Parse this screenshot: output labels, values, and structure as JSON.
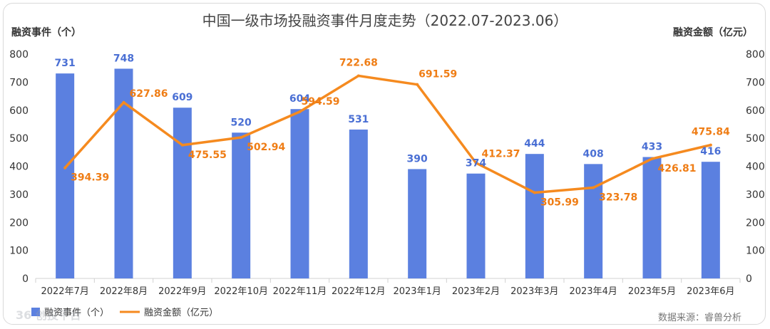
{
  "chart_data": {
    "type": "bar+line",
    "title": "中国一级市场投融资事件月度走势（2022.07-2023.06）",
    "ylabel_left": "融资事件（个）",
    "ylabel_right": "融资金额（亿元）",
    "ylim_left": [
      0,
      800
    ],
    "ylim_right": [
      0,
      800
    ],
    "yticks_left": [
      "0",
      "100",
      "200",
      "300",
      "400",
      "500",
      "600",
      "700",
      "800"
    ],
    "yticks_right": [
      "0",
      "100",
      "200",
      "300",
      "400",
      "500",
      "600",
      "700",
      "800"
    ],
    "categories": [
      "2022年7月",
      "2022年8月",
      "2022年9月",
      "2022年10月",
      "2022年11月",
      "2022年12月",
      "2023年1月",
      "2023年2月",
      "2023年3月",
      "2023年4月",
      "2023年5月",
      "2023年6月"
    ],
    "series": [
      {
        "name": "融资事件（个）",
        "type": "bar",
        "axis": "left",
        "color": "#5b80e0",
        "values": [
          731,
          748,
          609,
          520,
          604,
          531,
          390,
          374,
          444,
          408,
          433,
          416
        ],
        "labels": [
          "731",
          "748",
          "609",
          "520",
          "604",
          "531",
          "390",
          "374",
          "444",
          "408",
          "433",
          "416"
        ]
      },
      {
        "name": "融资金额（亿元）",
        "type": "line",
        "axis": "right",
        "color": "#f58a1f",
        "values": [
          394.39,
          627.86,
          475.55,
          502.94,
          594.59,
          722.68,
          691.59,
          412.37,
          305.99,
          323.78,
          426.81,
          475.84
        ],
        "labels": [
          "394.39",
          "627.86",
          "475.55",
          "502.94",
          "594.59",
          "722.68",
          "691.59",
          "412.37",
          "305.99",
          "323.78",
          "426.81",
          "475.84"
        ]
      }
    ],
    "legend": {
      "placement": "bottom-left"
    },
    "source": "数据来源：睿兽分析",
    "watermark": "36 创投平台"
  }
}
